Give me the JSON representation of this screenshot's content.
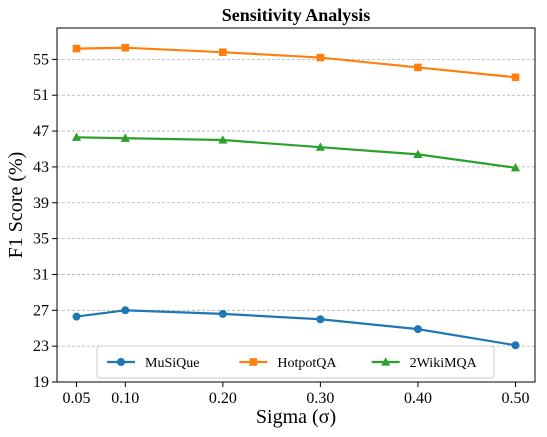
{
  "chart_data": {
    "type": "line",
    "title": "Sensitivity Analysis",
    "xlabel": "Sigma (σ)",
    "ylabel": "F1 Score (%)",
    "x": [
      0.05,
      0.1,
      0.2,
      0.3,
      0.4,
      0.5
    ],
    "x_tick_labels": [
      "0.05",
      "0.10",
      "0.20",
      "0.30",
      "0.40",
      "0.50"
    ],
    "xlim": [
      0.03,
      0.52
    ],
    "ylim": [
      19,
      58.5
    ],
    "y_ticks": [
      19,
      23,
      27,
      31,
      35,
      39,
      43,
      47,
      51,
      55
    ],
    "y_tick_labels": [
      "19",
      "23",
      "27",
      "31",
      "35",
      "39",
      "43",
      "47",
      "51",
      "55"
    ],
    "grid": "y-dashed",
    "legend_position": "bottom-center",
    "series": [
      {
        "name": "MuSiQue",
        "color": "#1f77b4",
        "marker": "circle",
        "values": [
          26.3,
          27.0,
          26.6,
          26.0,
          24.9,
          23.1
        ]
      },
      {
        "name": "HotpotQA",
        "color": "#ff7f0e",
        "marker": "square",
        "values": [
          56.2,
          56.3,
          55.8,
          55.2,
          54.1,
          53.0
        ]
      },
      {
        "name": "2WikiMQA",
        "color": "#2ca02c",
        "marker": "triangle",
        "values": [
          46.3,
          46.2,
          46.0,
          45.2,
          44.4,
          42.9
        ]
      }
    ]
  }
}
